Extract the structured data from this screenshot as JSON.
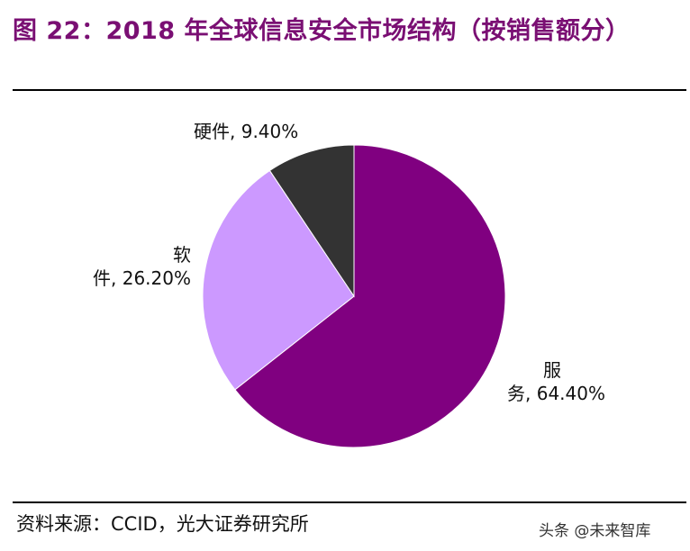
{
  "title": "图 22：2018 年全球信息安全市场结构（按销售额分）",
  "source": "资料来源：CCID，光大证券研究所",
  "watermark": "头条 @未来智库",
  "labels": {
    "service_line1": "服",
    "service_line2": "务, 64.40%",
    "software_line1": "软",
    "software_line2": "件, 26.20%",
    "hardware": "硬件, 9.40%"
  },
  "chart_data": {
    "type": "pie",
    "title": "图 22：2018 年全球信息安全市场结构（按销售额分）",
    "start_angle": "12 o'clock",
    "direction": "clockwise",
    "slices": [
      {
        "label": "服务",
        "value": 64.4,
        "color": "#800080"
      },
      {
        "label": "软件",
        "value": 26.2,
        "color": "#cc99ff"
      },
      {
        "label": "硬件",
        "value": 9.4,
        "color": "#333333"
      }
    ]
  }
}
